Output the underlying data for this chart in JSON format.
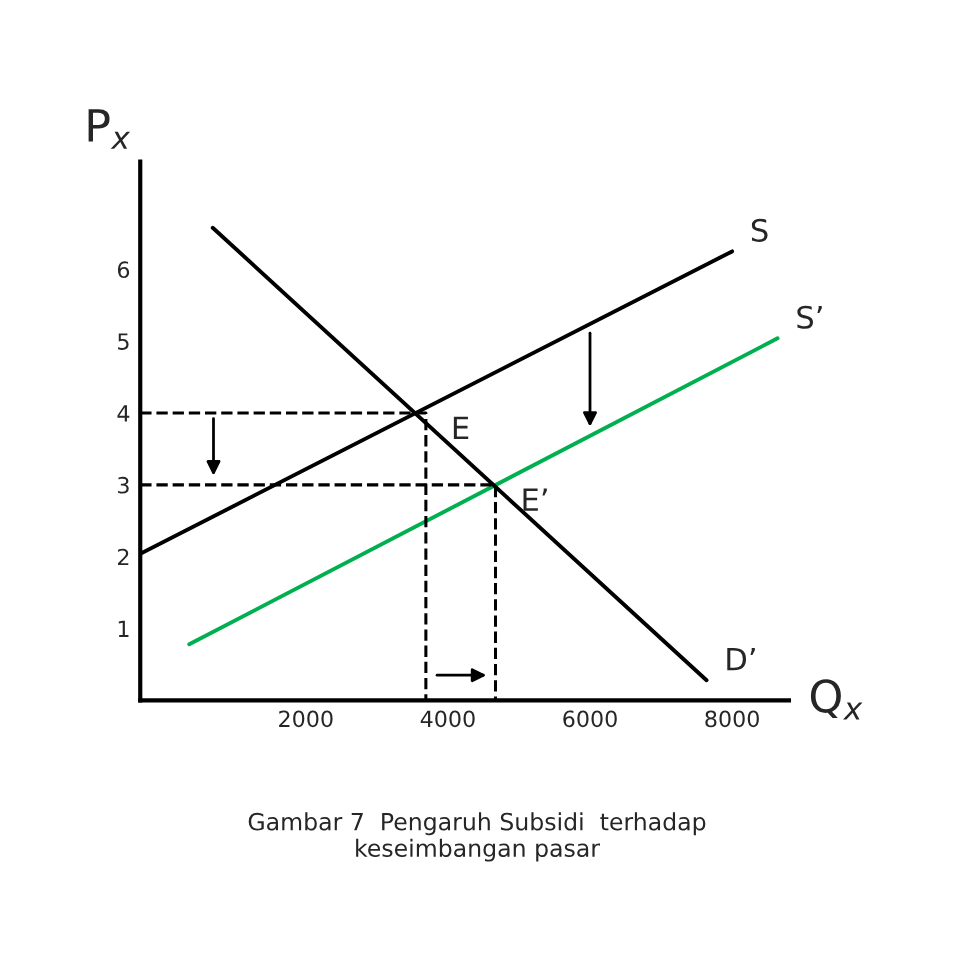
{
  "chart_data": {
    "type": "line",
    "xlabel": "Q$_{x}$",
    "ylabel": "P$_{x}$",
    "xlim": [
      -330,
      8800
    ],
    "ylim": [
      0,
      7.5
    ],
    "xticks": [
      2000,
      4000,
      6000,
      8000
    ],
    "yticks": [
      1,
      2,
      3,
      4,
      5,
      6
    ],
    "grid": false,
    "legend": false,
    "line_style": "solid",
    "marker": "none",
    "series": [
      {
        "name": "S",
        "color": "#000000",
        "x": [
          -330,
          8000
        ],
        "values": [
          2.04,
          6.25
        ]
      },
      {
        "name": "S’",
        "color": "#00b050",
        "x": [
          360,
          8640
        ],
        "values": [
          0.78,
          5.04
        ]
      },
      {
        "name": "D’",
        "color": "#000000",
        "x": [
          690,
          7640
        ],
        "values": [
          6.58,
          0.28
        ]
      },
      {
        "color": "#000000",
        "line_style": "dashed",
        "x": [
          -330,
          3690,
          3690
        ],
        "values": [
          4,
          4,
          0
        ]
      },
      {
        "color": "#000000",
        "line_style": "dashed",
        "x": [
          -330,
          4670,
          4670
        ],
        "values": [
          3,
          3,
          0
        ]
      }
    ],
    "annotations": [
      {
        "text": "E",
        "x": 3690,
        "y": 4
      },
      {
        "text": "E’",
        "x": 4670,
        "y": 3
      },
      "Gambar 7  Pengaruh Subsidi  terhadap\nkeseimbangan pasar"
    ]
  }
}
